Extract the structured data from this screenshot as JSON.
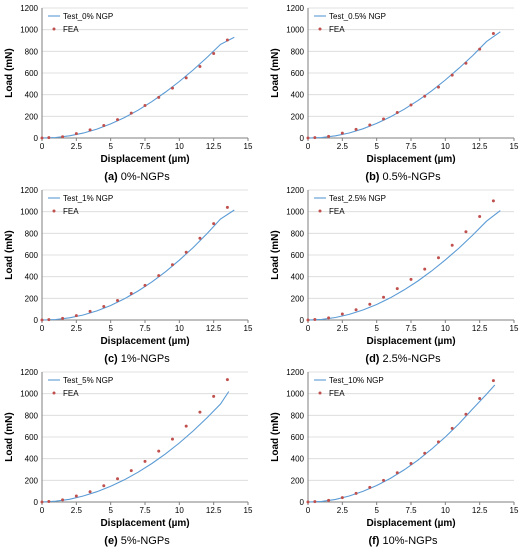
{
  "chart_data": [
    {
      "type": "line",
      "xlabel": "Displacement (µm)",
      "ylabel": "Load (mN)",
      "xlim": [
        0,
        15
      ],
      "ylim": [
        0,
        1200
      ],
      "xticks": [
        "0",
        "2.5",
        "5",
        "7.5",
        "10",
        "12.5",
        "15"
      ],
      "yticks": [
        "0",
        "200",
        "400",
        "600",
        "800",
        "1000",
        "1200"
      ],
      "caption_label": "(a)",
      "caption_text": "0%-NGPs",
      "legend_position": "top-left",
      "series": [
        {
          "name": "Test_0% NGP",
          "kind": "line",
          "color": "#5b9bd5",
          "x": [
            0,
            1,
            2,
            3,
            4,
            5,
            6,
            7,
            8,
            9,
            10,
            11,
            12,
            13,
            14
          ],
          "y": [
            0,
            5,
            20,
            45,
            82,
            130,
            188,
            257,
            336,
            425,
            522,
            628,
            742,
            864,
            930
          ]
        },
        {
          "name": "FEA",
          "kind": "scatter",
          "color": "#c0504d",
          "x": [
            0,
            0.5,
            1.5,
            2.5,
            3.5,
            4.5,
            5.5,
            6.5,
            7.5,
            8.5,
            9.5,
            10.5,
            11.5,
            12.5,
            13.5
          ],
          "y": [
            0,
            3,
            12,
            40,
            75,
            115,
            170,
            230,
            300,
            375,
            460,
            555,
            660,
            780,
            905
          ]
        }
      ]
    },
    {
      "type": "line",
      "xlabel": "Displacement (µm)",
      "ylabel": "Load (mN)",
      "xlim": [
        0,
        15
      ],
      "ylim": [
        0,
        1200
      ],
      "xticks": [
        "0",
        "2.5",
        "5",
        "7.5",
        "10",
        "12.5",
        "15"
      ],
      "yticks": [
        "0",
        "200",
        "400",
        "600",
        "800",
        "1000",
        "1200"
      ],
      "caption_label": "(b)",
      "caption_text": "0.5%-NGPs",
      "legend_position": "top-left",
      "series": [
        {
          "name": "Test_0.5% NGP",
          "kind": "line",
          "color": "#5b9bd5",
          "x": [
            0,
            1,
            2,
            3,
            4,
            5,
            6,
            7,
            8,
            9,
            10,
            11,
            12,
            13,
            14
          ],
          "y": [
            0,
            5,
            20,
            46,
            85,
            135,
            195,
            265,
            345,
            435,
            535,
            645,
            762,
            890,
            980
          ]
        },
        {
          "name": "FEA",
          "kind": "scatter",
          "color": "#c0504d",
          "x": [
            0,
            0.5,
            1.5,
            2.5,
            3.5,
            4.5,
            5.5,
            6.5,
            7.5,
            8.5,
            9.5,
            10.5,
            11.5,
            12.5,
            13.5
          ],
          "y": [
            0,
            3,
            15,
            45,
            80,
            120,
            175,
            235,
            305,
            385,
            470,
            580,
            690,
            820,
            965
          ]
        }
      ]
    },
    {
      "type": "line",
      "xlabel": "Displacement (µm)",
      "ylabel": "Load (mN)",
      "xlim": [
        0,
        15
      ],
      "ylim": [
        0,
        1200
      ],
      "xticks": [
        "0",
        "2.5",
        "5",
        "7.5",
        "10",
        "12.5",
        "15"
      ],
      "yticks": [
        "0",
        "200",
        "400",
        "600",
        "800",
        "1000",
        "1200"
      ],
      "caption_label": "(c)",
      "caption_text": "1%-NGPs",
      "legend_position": "top-left",
      "series": [
        {
          "name": "Test_1% NGP",
          "kind": "line",
          "color": "#5b9bd5",
          "x": [
            0,
            1,
            2,
            3,
            4,
            5,
            6,
            7,
            8,
            9,
            10,
            11,
            12,
            13,
            14
          ],
          "y": [
            0,
            5,
            20,
            46,
            84,
            134,
            196,
            268,
            352,
            446,
            552,
            668,
            795,
            932,
            1015
          ]
        },
        {
          "name": "FEA",
          "kind": "scatter",
          "color": "#c0504d",
          "x": [
            0,
            0.5,
            1.5,
            2.5,
            3.5,
            4.5,
            5.5,
            6.5,
            7.5,
            8.5,
            9.5,
            10.5,
            11.5,
            12.5,
            13.5
          ],
          "y": [
            0,
            3,
            15,
            40,
            80,
            125,
            180,
            245,
            320,
            410,
            510,
            625,
            755,
            890,
            1040
          ]
        }
      ]
    },
    {
      "type": "line",
      "xlabel": "Displacement (µm)",
      "ylabel": "Load (mN)",
      "xlim": [
        0,
        15
      ],
      "ylim": [
        0,
        1200
      ],
      "xticks": [
        "0",
        "2.5",
        "5",
        "7.5",
        "10",
        "12.5",
        "15"
      ],
      "yticks": [
        "0",
        "200",
        "400",
        "600",
        "800",
        "1000",
        "1200"
      ],
      "caption_label": "(d)",
      "caption_text": "2.5%-NGPs",
      "legend_position": "top-left",
      "series": [
        {
          "name": "Test_2.5% NGP",
          "kind": "line",
          "color": "#5b9bd5",
          "x": [
            0,
            1,
            2,
            3,
            4,
            5,
            6,
            7,
            8,
            9,
            10,
            11,
            12,
            13,
            14
          ],
          "y": [
            0,
            6,
            23,
            52,
            92,
            143,
            205,
            278,
            360,
            452,
            555,
            665,
            785,
            912,
            1010
          ]
        },
        {
          "name": "FEA",
          "kind": "scatter",
          "color": "#c0504d",
          "x": [
            0,
            0.5,
            1.5,
            2.5,
            3.5,
            4.5,
            5.5,
            6.5,
            7.5,
            8.5,
            9.5,
            10.5,
            11.5,
            12.5,
            13.5
          ],
          "y": [
            0,
            5,
            20,
            55,
            95,
            145,
            210,
            290,
            375,
            470,
            575,
            690,
            815,
            955,
            1100
          ]
        }
      ]
    },
    {
      "type": "line",
      "xlabel": "Displacement (µm)",
      "ylabel": "Load (mN)",
      "xlim": [
        0,
        15
      ],
      "ylim": [
        0,
        1200
      ],
      "xticks": [
        "0",
        "2.5",
        "5",
        "7.5",
        "10",
        "12.5",
        "15"
      ],
      "yticks": [
        "0",
        "200",
        "400",
        "600",
        "800",
        "1000",
        "1200"
      ],
      "caption_label": "(e)",
      "caption_text": "5%-NGPs",
      "legend_position": "top-left",
      "series": [
        {
          "name": "Test_5% NGP",
          "kind": "line",
          "color": "#5b9bd5",
          "x": [
            0,
            1,
            2,
            3,
            4,
            5,
            6,
            7,
            8,
            9,
            10,
            11,
            12,
            13,
            13.6
          ],
          "y": [
            0,
            7,
            25,
            55,
            95,
            145,
            205,
            275,
            355,
            445,
            545,
            655,
            775,
            905,
            1020
          ]
        },
        {
          "name": "FEA",
          "kind": "scatter",
          "color": "#c0504d",
          "x": [
            0,
            0.5,
            1.5,
            2.5,
            3.5,
            4.5,
            5.5,
            6.5,
            7.5,
            8.5,
            9.5,
            10.5,
            11.5,
            12.5,
            13.5
          ],
          "y": [
            0,
            5,
            20,
            55,
            95,
            150,
            215,
            290,
            375,
            470,
            580,
            700,
            830,
            975,
            1130
          ]
        }
      ]
    },
    {
      "type": "line",
      "xlabel": "Displacement (µm)",
      "ylabel": "Load (mN)",
      "xlim": [
        0,
        15
      ],
      "ylim": [
        0,
        1200
      ],
      "xticks": [
        "0",
        "2.5",
        "5",
        "7.5",
        "10",
        "12.5",
        "15"
      ],
      "yticks": [
        "0",
        "200",
        "400",
        "600",
        "800",
        "1000",
        "1200"
      ],
      "caption_label": "(f)",
      "caption_text": "10%-NGPs",
      "legend_position": "top-left",
      "series": [
        {
          "name": "Test_10% NGP",
          "kind": "line",
          "color": "#5b9bd5",
          "x": [
            0,
            1,
            2,
            3,
            4,
            5,
            6,
            7,
            8,
            9,
            10,
            11,
            12,
            13,
            13.6
          ],
          "y": [
            0,
            6,
            24,
            55,
            98,
            152,
            218,
            296,
            386,
            488,
            600,
            724,
            860,
            995,
            1080
          ]
        },
        {
          "name": "FEA",
          "kind": "scatter",
          "color": "#c0504d",
          "x": [
            0,
            0.5,
            1.5,
            2.5,
            3.5,
            4.5,
            5.5,
            6.5,
            7.5,
            8.5,
            9.5,
            10.5,
            11.5,
            12.5,
            13.5
          ],
          "y": [
            0,
            3,
            15,
            40,
            80,
            135,
            200,
            270,
            355,
            450,
            555,
            680,
            810,
            955,
            1120
          ]
        }
      ]
    }
  ]
}
